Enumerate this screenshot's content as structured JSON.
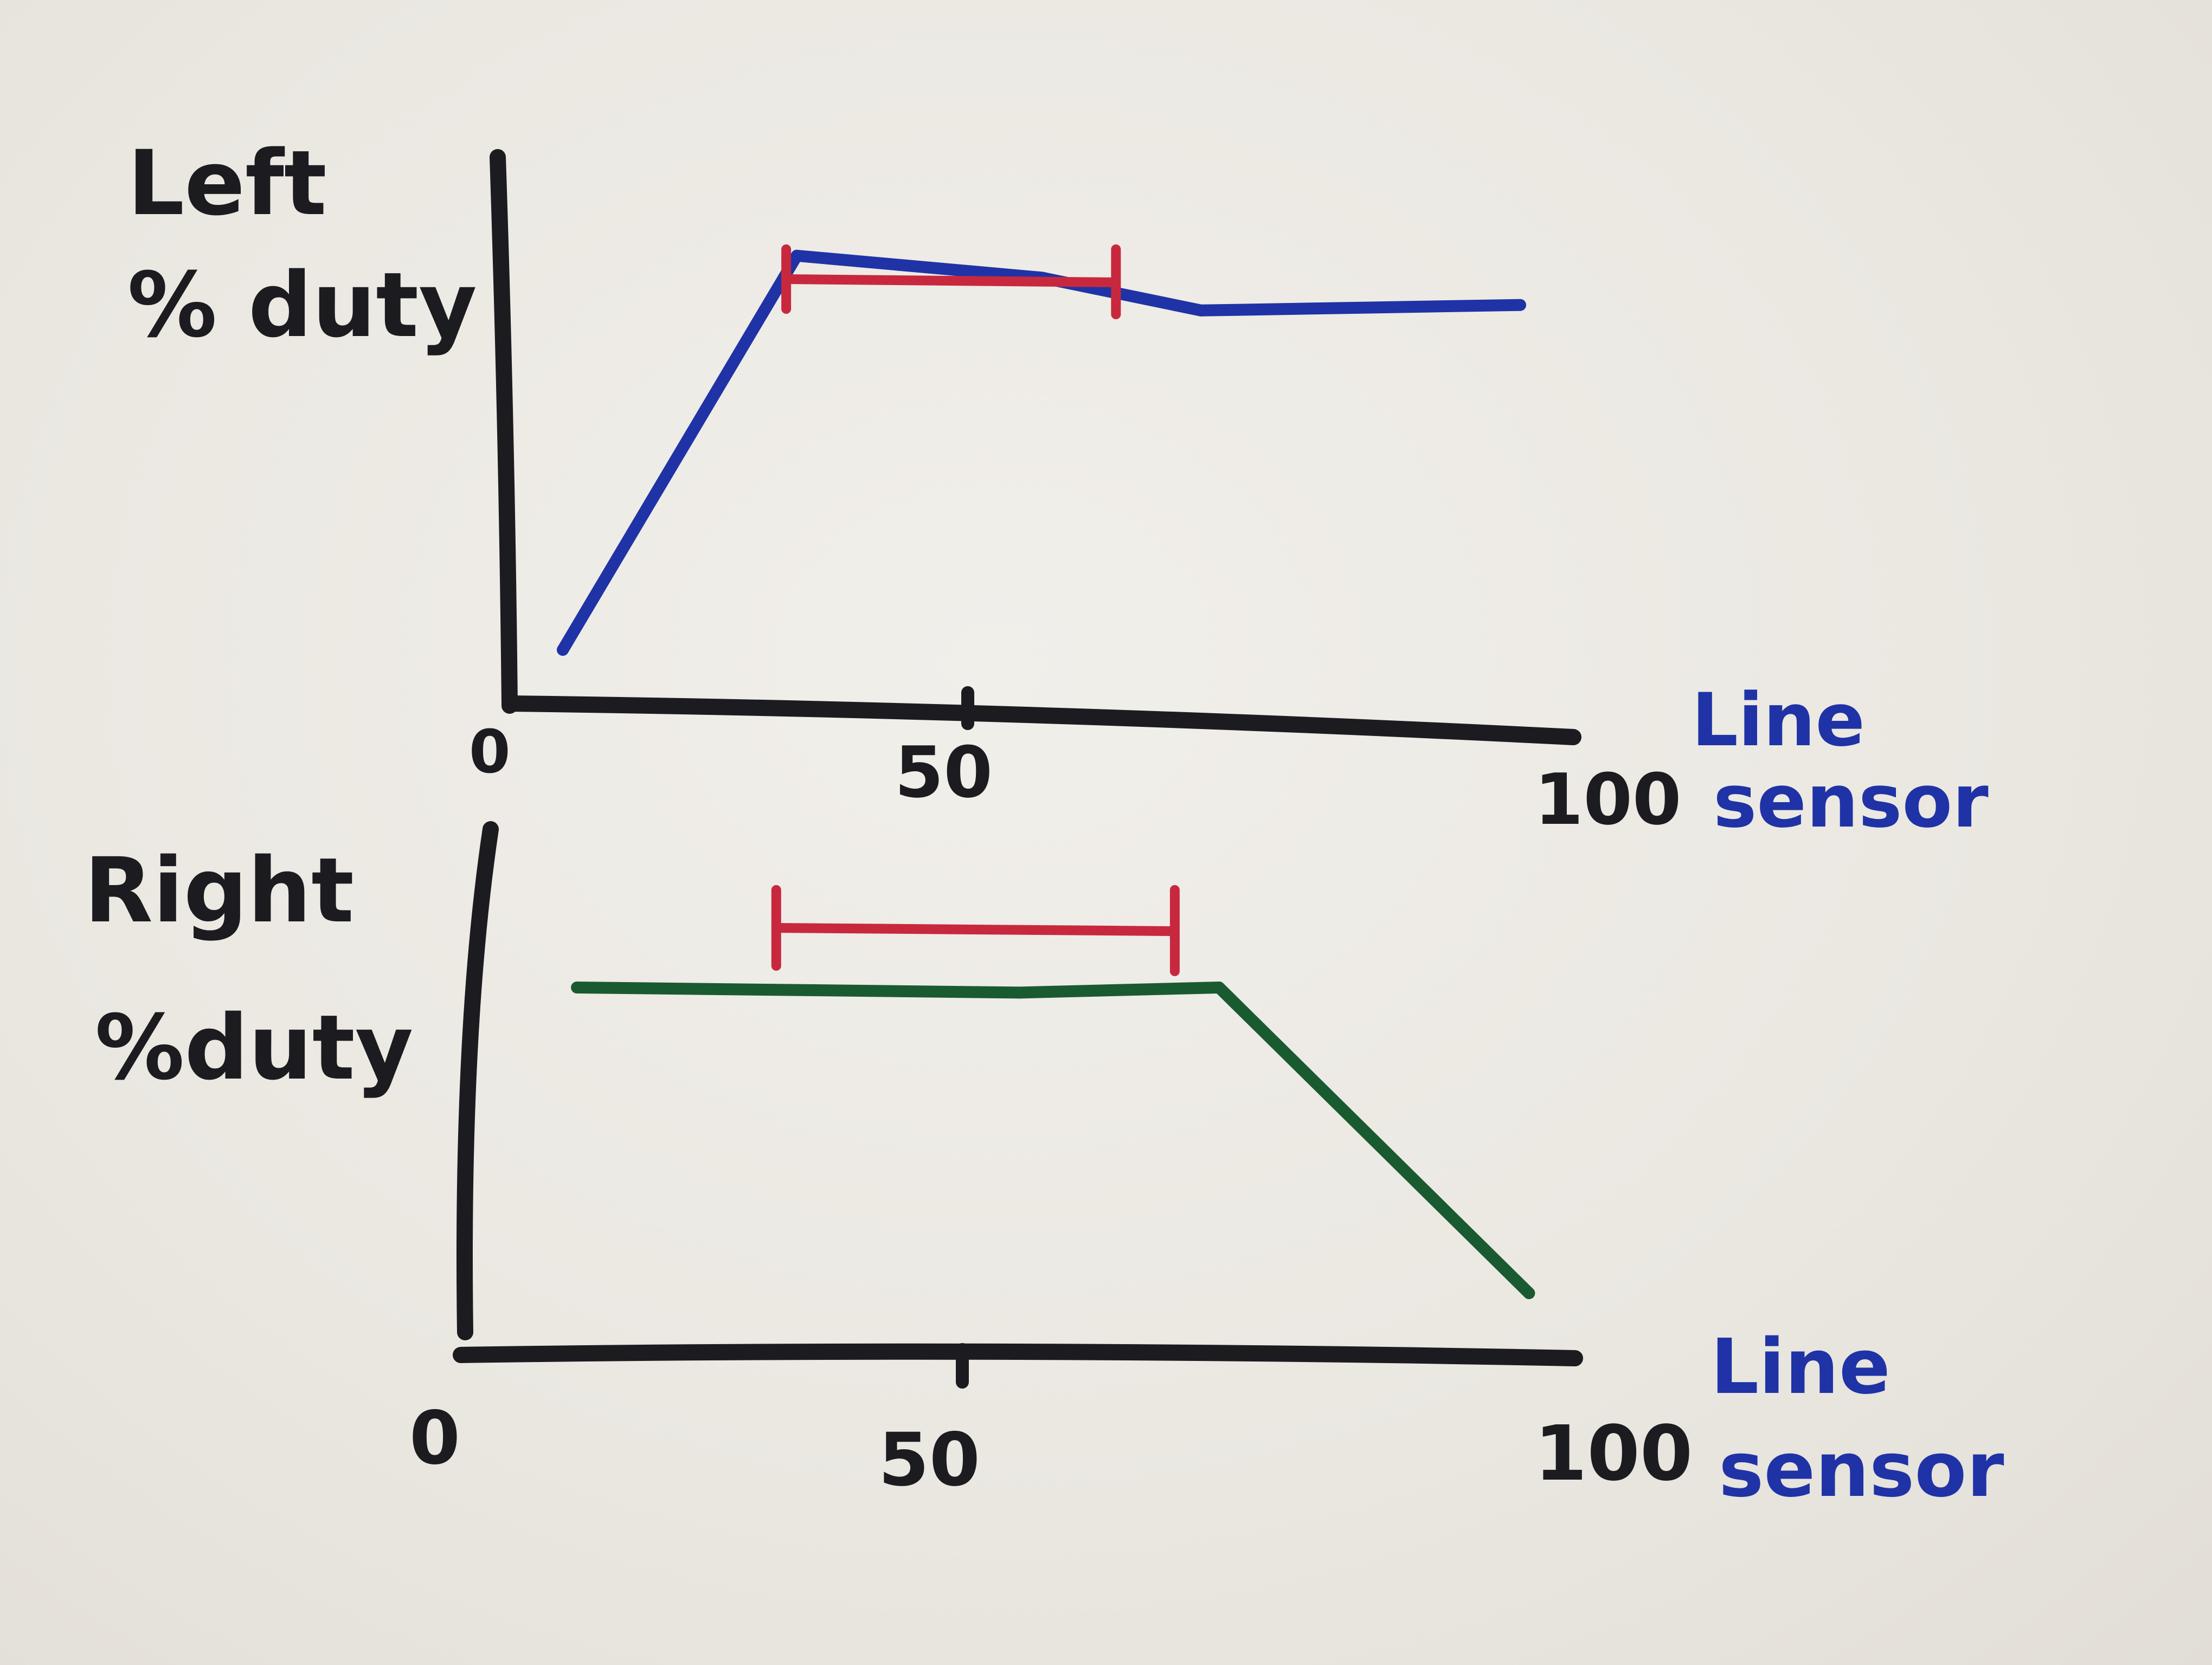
{
  "colors": {
    "axis": "#1c1c20",
    "left_series": "#1f33a6",
    "right_series": "#1a5a30",
    "range_marker": "#c8283e",
    "label_blue": "#1f33a6",
    "paper": "#ece9e3"
  },
  "chart_data": [
    {
      "type": "line",
      "ylabel_lines": [
        "Left",
        "% duty"
      ],
      "xlabel_lines": [
        "Line",
        "sensor"
      ],
      "x_ticks": [
        "0",
        "50",
        "100"
      ],
      "xlim": [
        0,
        100
      ],
      "ylim": [
        0,
        100
      ],
      "grid": false,
      "series": [
        {
          "x": [
            5,
            27,
            50,
            65,
            95
          ],
          "values": [
            10,
            82,
            78,
            72,
            73
          ]
        }
      ],
      "range_marker": {
        "x_start": 26,
        "x_end": 57
      }
    },
    {
      "type": "line",
      "ylabel_lines": [
        "Right",
        "%duty"
      ],
      "xlabel_lines": [
        "Line",
        "sensor"
      ],
      "x_ticks": [
        "0",
        "50",
        "100"
      ],
      "xlim": [
        0,
        100
      ],
      "ylim": [
        0,
        100
      ],
      "grid": false,
      "series": [
        {
          "x": [
            10,
            50,
            68,
            96
          ],
          "values": [
            70,
            69,
            70,
            10
          ]
        }
      ],
      "range_marker": {
        "x_start": 28,
        "x_end": 64
      }
    }
  ]
}
